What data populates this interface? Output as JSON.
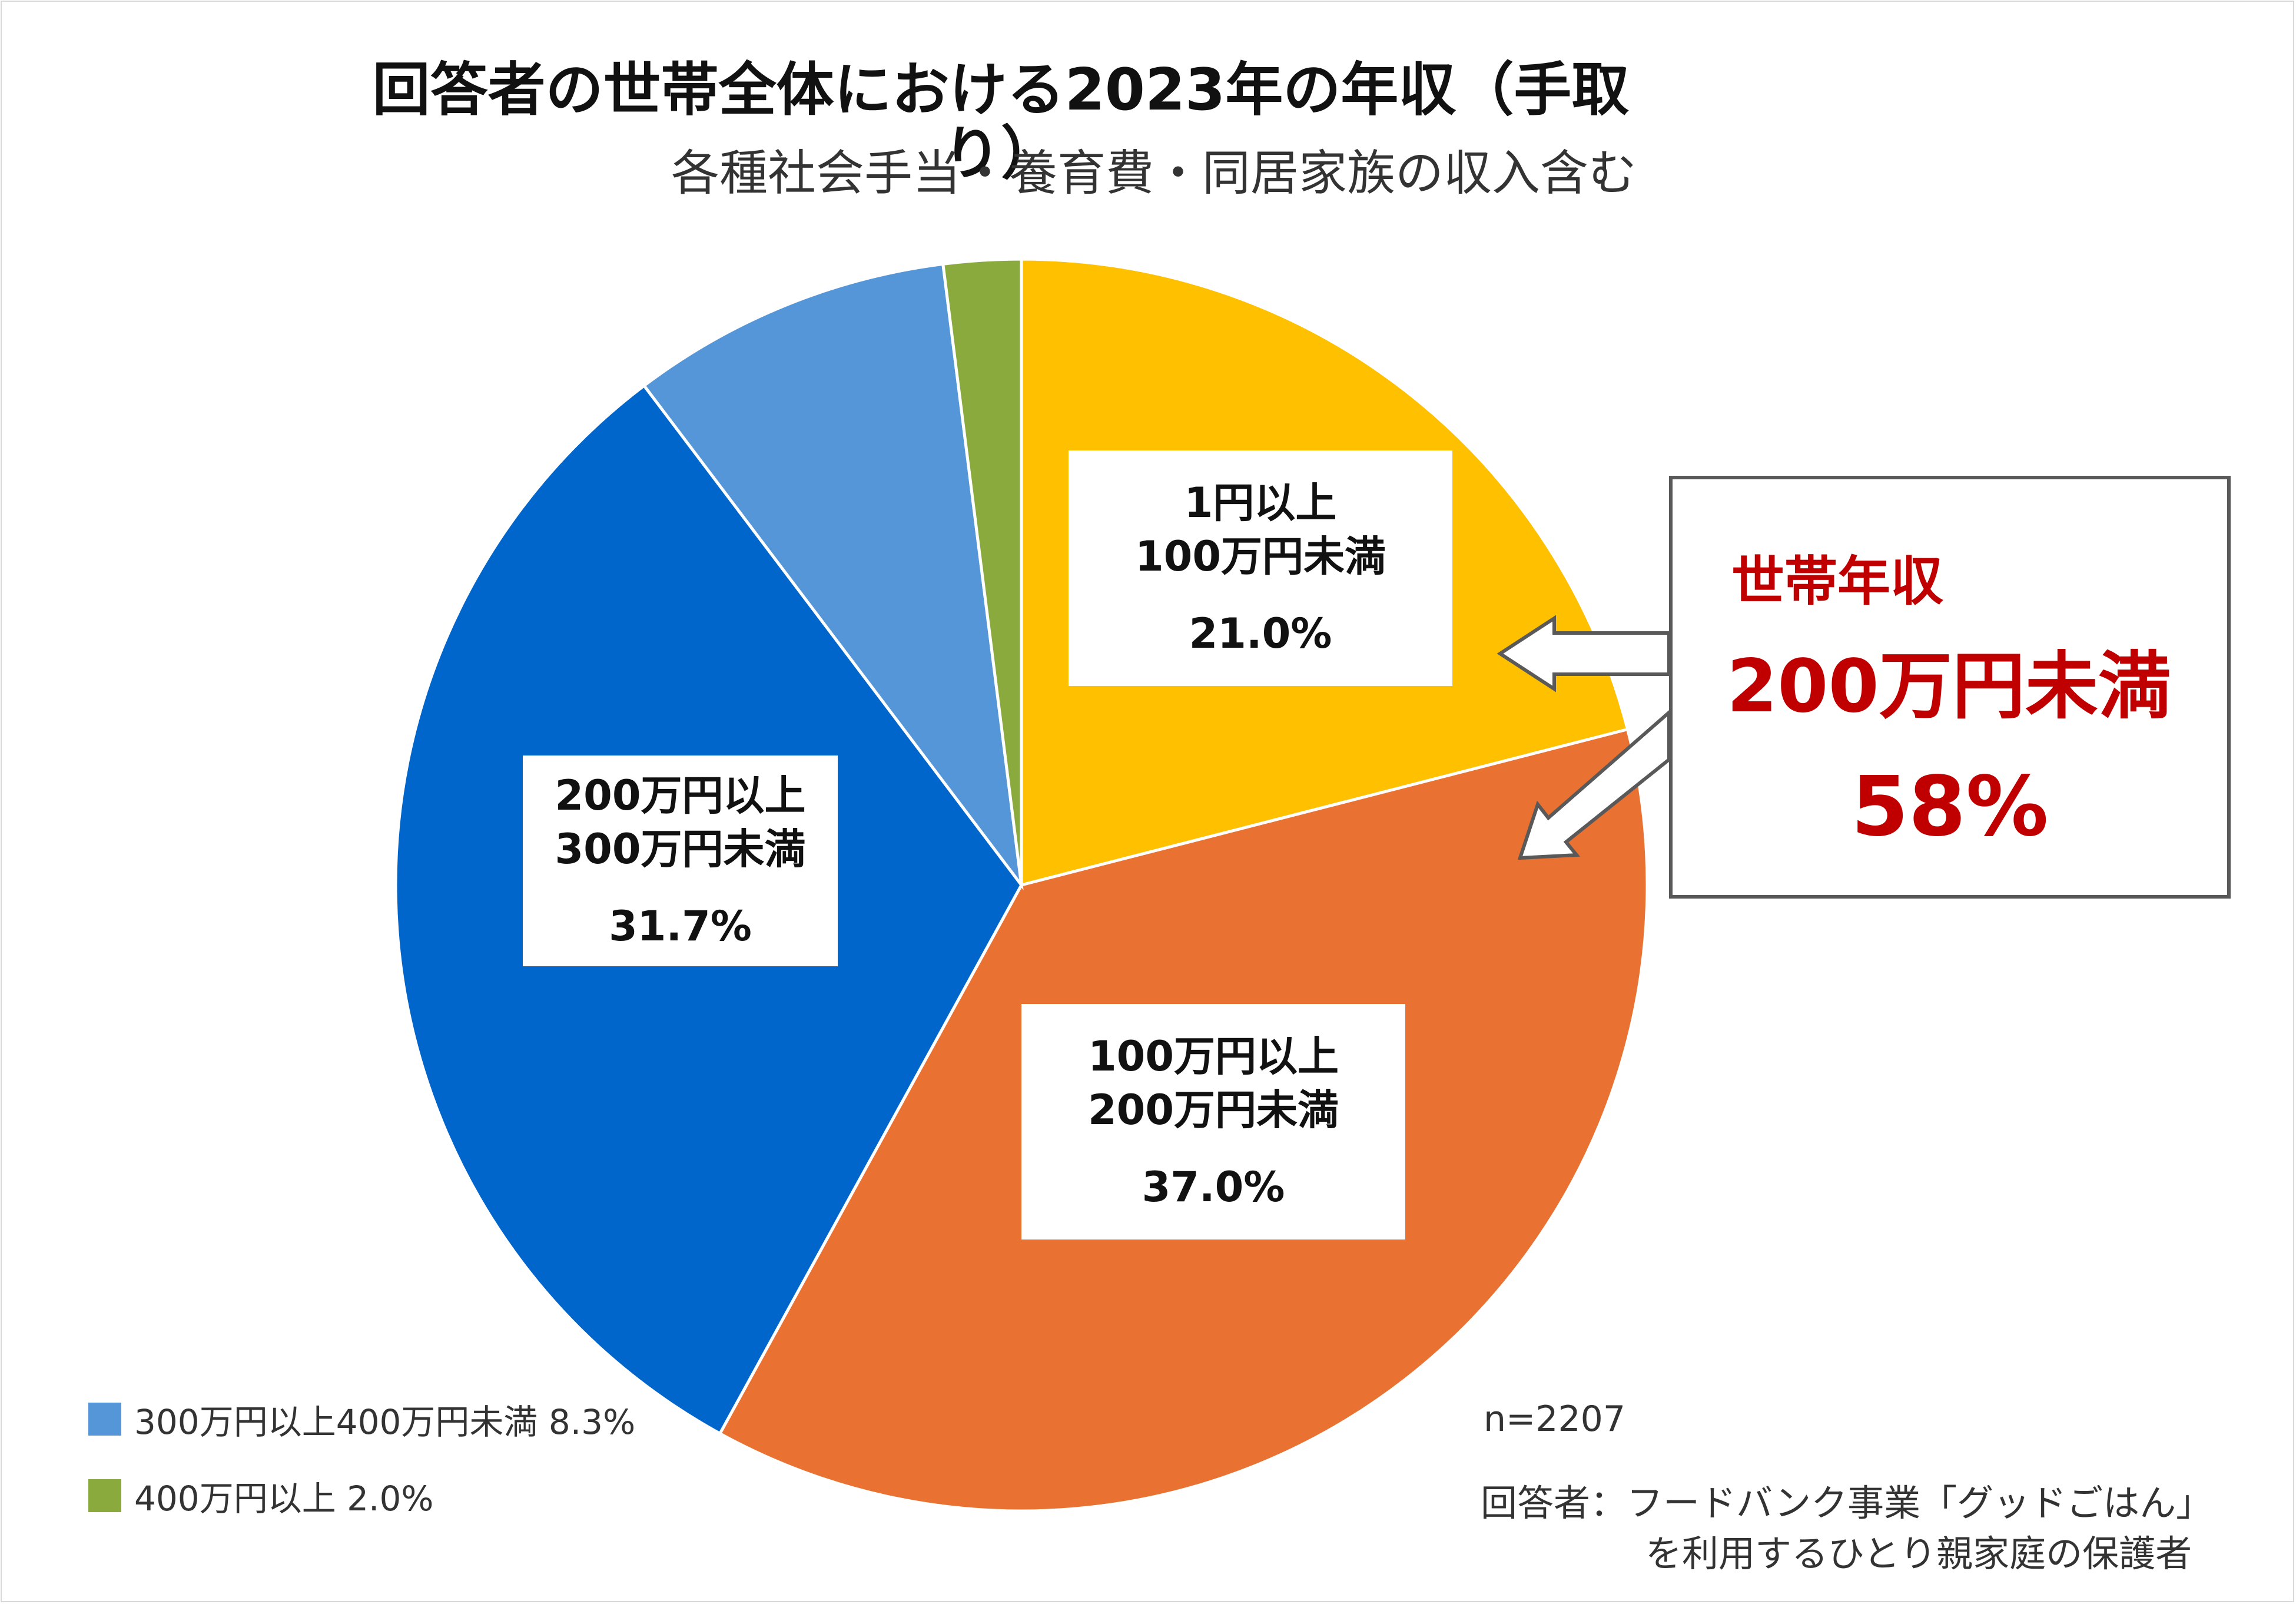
{
  "title": "回答者の世帯全体における2023年の年収（手取り）",
  "subtitle": "各種社会手当・養育費・同居家族の収入含む",
  "chart_data": {
    "type": "pie",
    "categories": [
      "1円以上100万円未満",
      "100万円以上200万円未満",
      "200万円以上300万円未満",
      "300万円以上400万円未満",
      "400万円以上"
    ],
    "values": [
      21.0,
      37.0,
      31.7,
      8.3,
      2.0
    ],
    "colors": [
      "#ffc000",
      "#e97132",
      "#0066cc",
      "#5596d8",
      "#8aaa3e"
    ],
    "start_angle_deg": 0,
    "direction": "clockwise",
    "n": "n=2207"
  },
  "labels": [
    {
      "line1": "1円以上",
      "line2": "100万円未満",
      "pct": "21.0%"
    },
    {
      "line1": "100万円以上",
      "line2": "200万円未満",
      "pct": "37.0%"
    },
    {
      "line1": "200万円以上",
      "line2": "300万円未満",
      "pct": "31.7%"
    }
  ],
  "legend": [
    {
      "label": "300万円以上400万円未満  8.3%",
      "color": "#5596d8"
    },
    {
      "label": "400万円以上  2.0%",
      "color": "#8aaa3e"
    }
  ],
  "callout": {
    "line1": "世帯年収",
    "line2": "200万円未満",
    "line3": "58%",
    "color": "#c00000"
  },
  "footer": {
    "n": "n=2207",
    "respondent_line1": "回答者：フードバンク事業「グッドごはん」",
    "respondent_line2": "を利用するひとり親家庭の保護者"
  }
}
